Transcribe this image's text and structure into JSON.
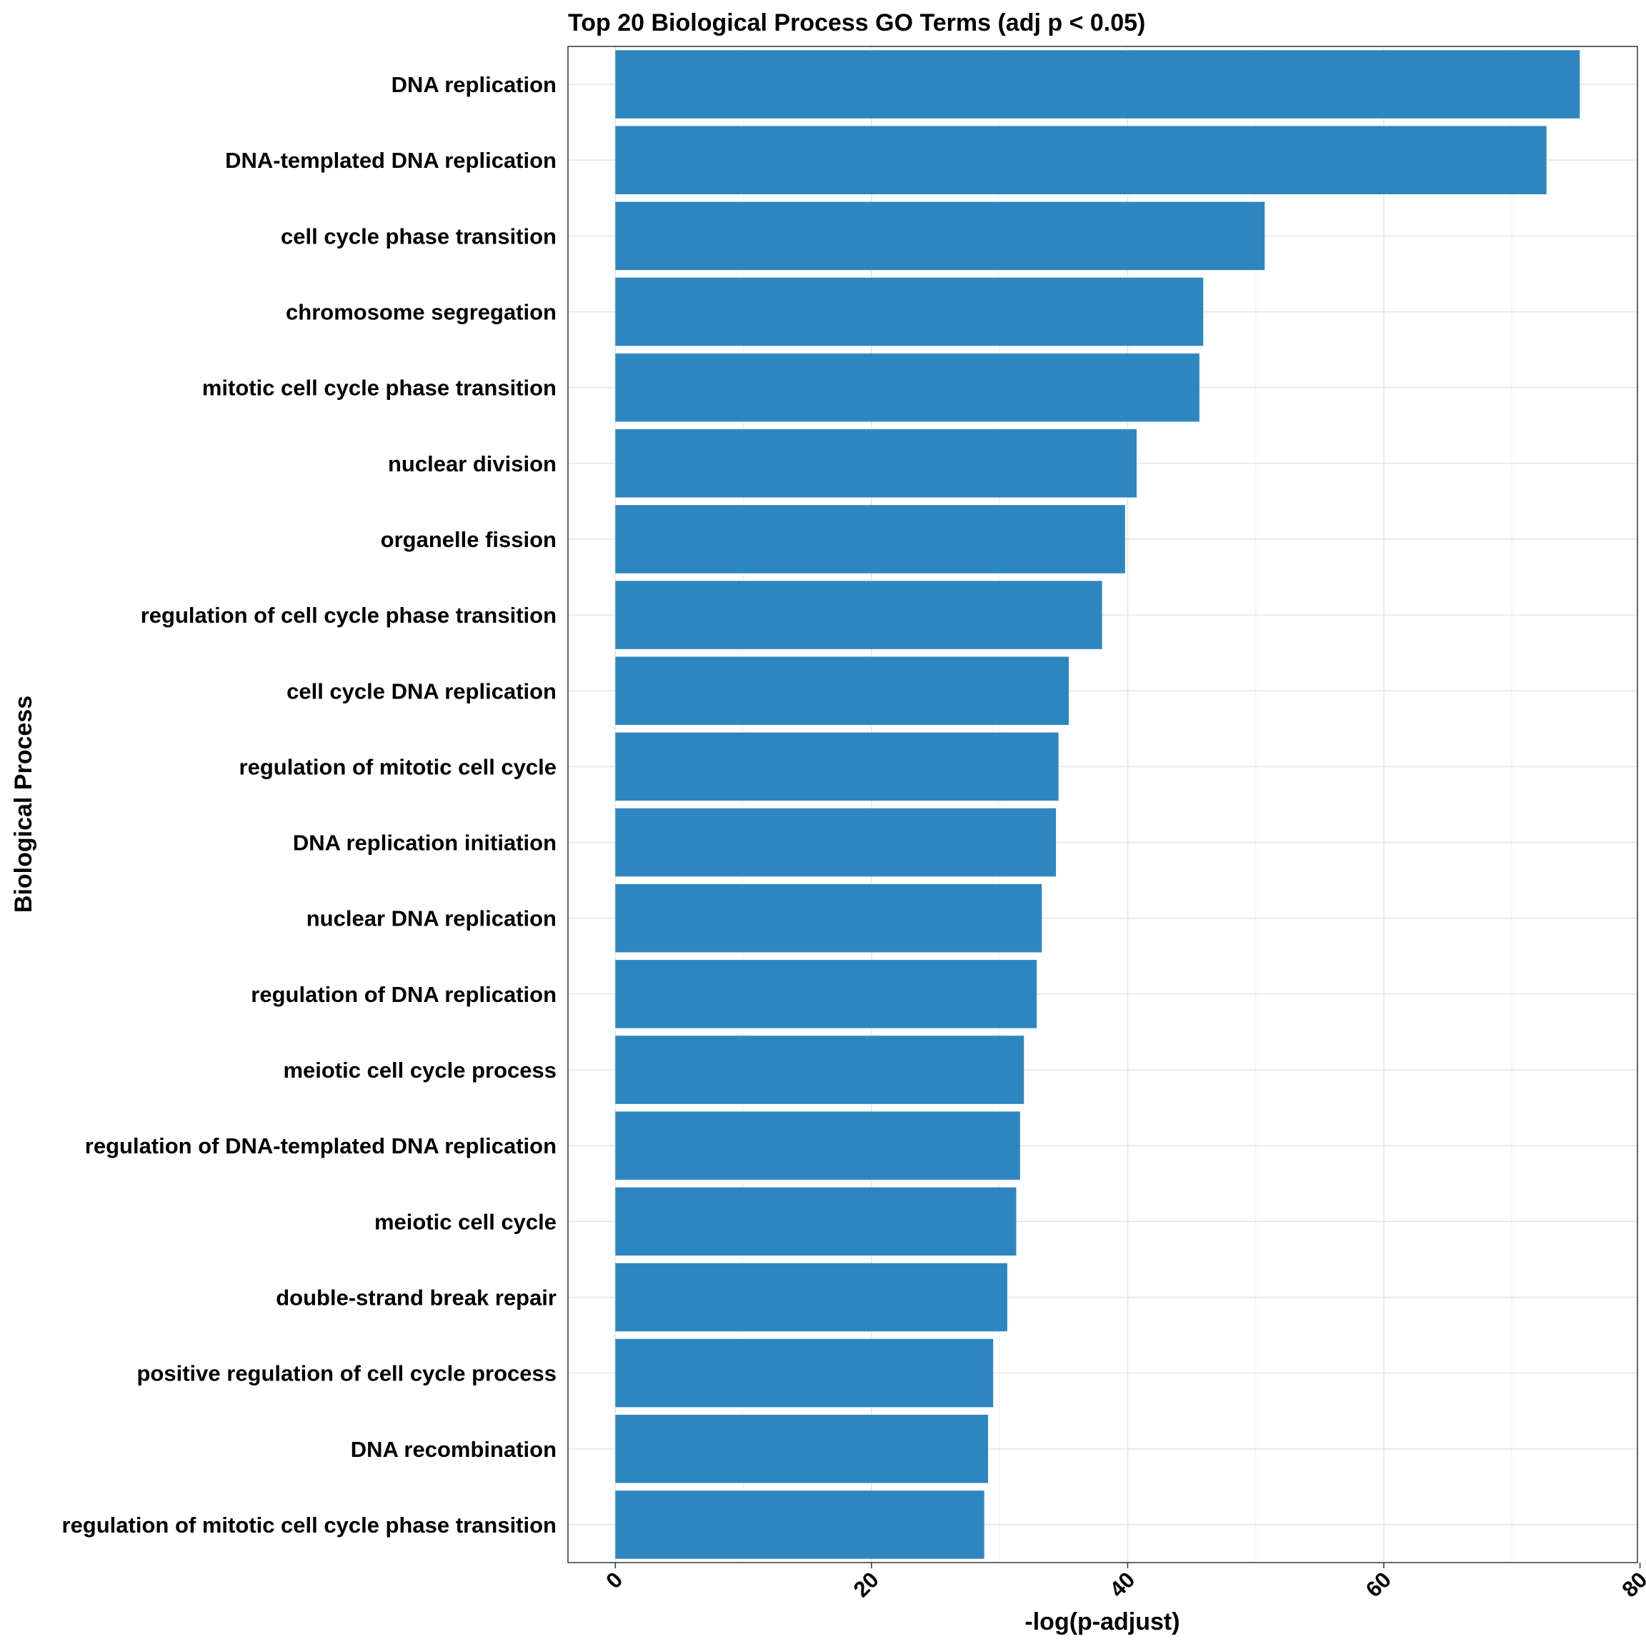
{
  "chart_data": {
    "type": "bar",
    "orientation": "horizontal",
    "title": "Top 20 Biological Process GO Terms (adj p < 0.05)",
    "xlabel": "-log(p-adjust)",
    "ylabel": "Biological Process",
    "xlim": [
      -3.7,
      79.8
    ],
    "x_ticks": [
      0,
      20,
      40,
      60,
      80
    ],
    "grid": true,
    "legend": "none",
    "bar_color": "#2E86C1",
    "categories": [
      "DNA replication",
      "DNA-templated DNA replication",
      "cell cycle phase transition",
      "chromosome segregation",
      "mitotic cell cycle phase transition",
      "nuclear division",
      "organelle fission",
      "regulation of cell cycle phase transition",
      "cell cycle DNA replication",
      "regulation of mitotic cell cycle",
      "DNA replication initiation",
      "nuclear DNA replication",
      "regulation of DNA replication",
      "meiotic cell cycle process",
      "regulation of DNA-templated DNA replication",
      "meiotic cell cycle",
      "double-strand break repair",
      "positive regulation of cell cycle process",
      "DNA recombination",
      "regulation of mitotic cell cycle phase transition"
    ],
    "values": [
      75.3,
      72.7,
      50.7,
      45.9,
      45.6,
      40.7,
      39.8,
      38.0,
      35.4,
      34.6,
      34.4,
      33.3,
      32.9,
      31.9,
      31.6,
      31.3,
      30.6,
      29.5,
      29.1,
      28.8
    ]
  }
}
